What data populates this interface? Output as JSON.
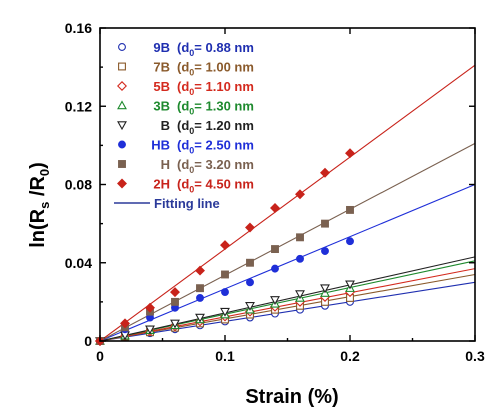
{
  "chart_data": {
    "type": "scatter",
    "xlabel": "Strain (%)",
    "ylabel_main": "ln(R",
    "ylabel_sub1": "s",
    "ylabel_mid": " /R",
    "ylabel_sub2": "0",
    "ylabel_end": ")",
    "xlim": [
      0,
      0.3
    ],
    "ylim": [
      0,
      0.16
    ],
    "xticks": [
      0,
      0.1,
      0.2,
      0.3
    ],
    "xtick_labels": [
      "0",
      "0.1",
      "0.2",
      "0.3"
    ],
    "yticks": [
      0,
      0.04,
      0.08,
      0.12,
      0.16
    ],
    "ytick_labels": [
      "0",
      "0.04",
      "0.08",
      "0.12",
      "0.16"
    ],
    "legend_position": "top-left",
    "fit_legend_label": "Fitting line",
    "fit_legend_color": "#2b3a9a",
    "x": [
      0,
      0.02,
      0.04,
      0.06,
      0.08,
      0.1,
      0.12,
      0.14,
      0.16,
      0.18,
      0.2
    ],
    "series": [
      {
        "name": "9B",
        "param_pre": "(d",
        "param_sub": "0",
        "param_post": "= 0.88 nm",
        "color": "#1f2fb0",
        "marker": "circle-open",
        "values": [
          0,
          0.002,
          0.004,
          0.006,
          0.008,
          0.01,
          0.012,
          0.014,
          0.016,
          0.018,
          0.02
        ],
        "fit_end": [
          0.3,
          0.03
        ]
      },
      {
        "name": "7B",
        "param_pre": "(d",
        "param_sub": "0",
        "param_post": "= 1.00 nm",
        "color": "#8a5a2b",
        "marker": "square-open",
        "values": [
          0,
          0.0022,
          0.0045,
          0.0068,
          0.009,
          0.011,
          0.0135,
          0.016,
          0.018,
          0.02,
          0.022
        ],
        "fit_end": [
          0.3,
          0.034
        ]
      },
      {
        "name": "5B",
        "param_pre": "(d",
        "param_sub": "0",
        "param_post": "= 1.10 nm",
        "color": "#d42a1e",
        "marker": "diamond-open",
        "values": [
          0,
          0.0025,
          0.005,
          0.0075,
          0.01,
          0.0125,
          0.015,
          0.0175,
          0.02,
          0.0225,
          0.025
        ],
        "fit_end": [
          0.3,
          0.037
        ]
      },
      {
        "name": "3B",
        "param_pre": "(d",
        "param_sub": "0",
        "param_post": "= 1.30 nm",
        "color": "#1e8a2e",
        "marker": "triangle-up-open",
        "values": [
          0,
          0.0027,
          0.0055,
          0.008,
          0.011,
          0.0135,
          0.016,
          0.019,
          0.022,
          0.0245,
          0.027
        ],
        "fit_end": [
          0.3,
          0.041
        ]
      },
      {
        "name": "B",
        "param_pre": "(d",
        "param_sub": "0",
        "param_post": "= 1.20 nm",
        "color": "#222222",
        "marker": "triangle-down-open",
        "values": [
          0,
          0.003,
          0.006,
          0.009,
          0.012,
          0.015,
          0.018,
          0.021,
          0.024,
          0.027,
          0.029
        ],
        "fit_end": [
          0.3,
          0.043
        ]
      },
      {
        "name": "HB",
        "param_pre": "(d",
        "param_sub": "0",
        "param_post": "= 2.50 nm",
        "color": "#1f2fd8",
        "marker": "circle-filled",
        "values": [
          0,
          0.006,
          0.012,
          0.017,
          0.022,
          0.025,
          0.03,
          0.037,
          0.042,
          0.046,
          0.051
        ],
        "fit_end": [
          0.3,
          0.08
        ]
      },
      {
        "name": "H",
        "param_pre": "(d",
        "param_sub": "0",
        "param_post": "= 3.20 nm",
        "color": "#7a6150",
        "marker": "square-filled",
        "values": [
          0,
          0.007,
          0.015,
          0.02,
          0.027,
          0.034,
          0.04,
          0.047,
          0.053,
          0.06,
          0.067
        ],
        "fit_end": [
          0.3,
          0.101
        ]
      },
      {
        "name": "2H",
        "param_pre": "(d",
        "param_sub": "0",
        "param_post": "= 4.50 nm",
        "color": "#c8231b",
        "marker": "diamond-filled",
        "values": [
          0,
          0.009,
          0.017,
          0.025,
          0.036,
          0.049,
          0.058,
          0.068,
          0.075,
          0.086,
          0.096
        ],
        "fit_end": [
          0.3,
          0.141
        ]
      }
    ]
  }
}
